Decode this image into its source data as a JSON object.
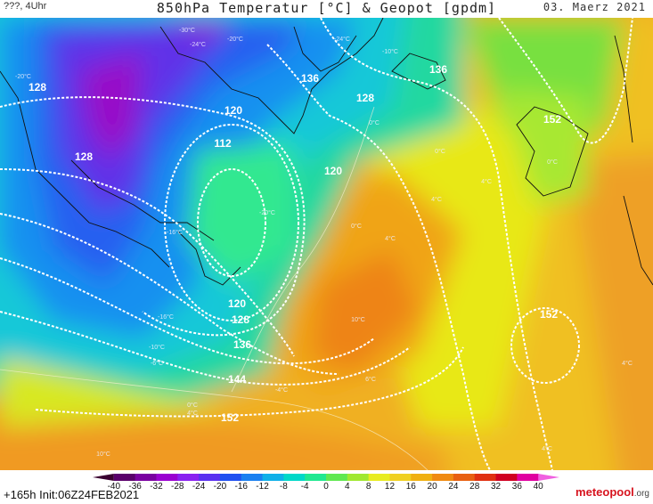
{
  "header": {
    "left": "???, 4Uhr",
    "title": "850hPa Temperatur [°C] & Geopot [gpdm]",
    "date": "03. Maerz 2021"
  },
  "footer": {
    "run_info": "+165h Init:06Z24FEB2021",
    "logo_main": "meteopool",
    "logo_tld": ".org"
  },
  "legend": {
    "ticks": [
      "-40",
      "-36",
      "-32",
      "-28",
      "-24",
      "-20",
      "-16",
      "-12",
      "-8",
      "-4",
      "0",
      "4",
      "8",
      "12",
      "16",
      "20",
      "24",
      "28",
      "32",
      "36",
      "40"
    ],
    "colors": [
      "#3a0030",
      "#5a006a",
      "#7a00a0",
      "#9a00d0",
      "#8a20f0",
      "#5a30f0",
      "#2050f0",
      "#1a80f0",
      "#10b0e8",
      "#00d8c8",
      "#20e890",
      "#60e850",
      "#a0e830",
      "#e8ec20",
      "#f0d020",
      "#f0b010",
      "#f08a10",
      "#e86010",
      "#e03010",
      "#d00020",
      "#e000a0",
      "#f060e0"
    ]
  },
  "map_labels": {
    "geopot": [
      "128",
      "128",
      "136",
      "136",
      "128",
      "120",
      "112",
      "120",
      "120",
      "128",
      "136",
      "144",
      "152",
      "152",
      "152"
    ],
    "temps": [
      "-20°C",
      "-30°C",
      "-24°C",
      "-20°C",
      "-24°C",
      "-10°C",
      "0°C",
      "0°C",
      "0°C",
      "4°C",
      "0°C",
      "-20°C",
      "-16°C",
      "-16°C",
      "-10°C",
      "-6°C",
      "10°C",
      "-4°C",
      "0°C",
      "4°C",
      "4°C",
      "10°C",
      "6°C",
      "4°C",
      "4°C",
      "4°C"
    ]
  },
  "colors": {
    "cold_core": "#7a10d0",
    "warm_tongue": "#f0a020",
    "contour": "#ffffff"
  }
}
